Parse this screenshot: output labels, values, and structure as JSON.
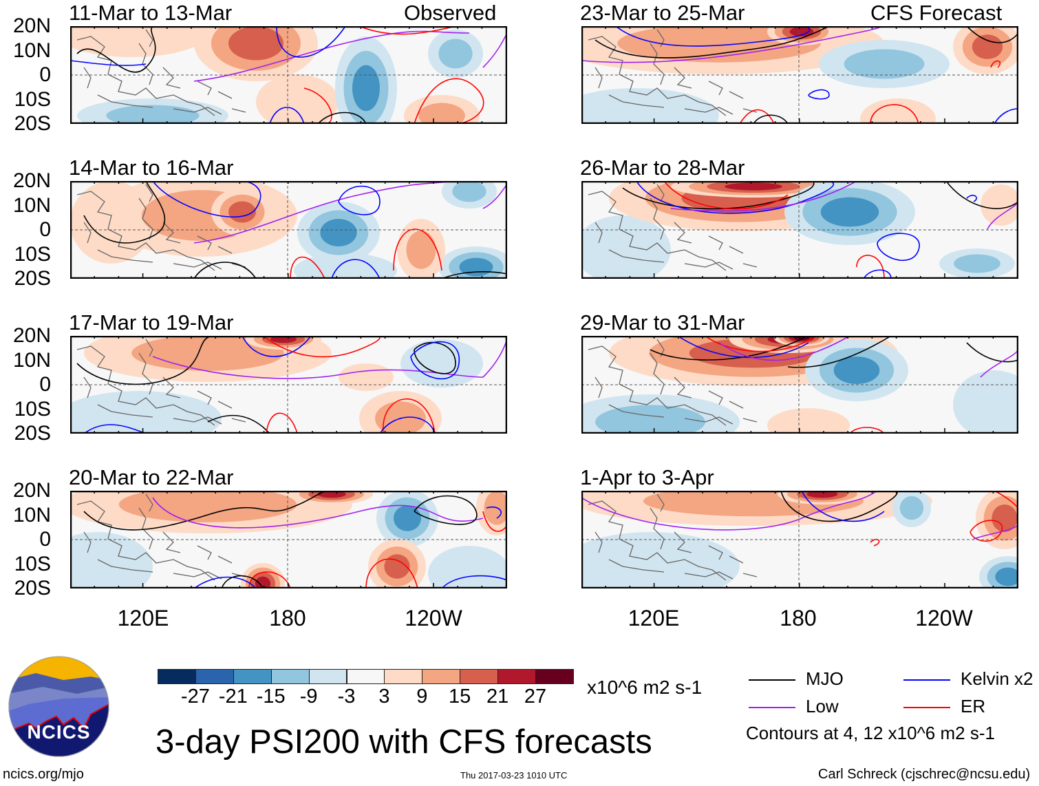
{
  "header": {
    "observed_label": "Observed",
    "forecast_label": "CFS Forecast"
  },
  "panels": [
    {
      "title": "11-Mar to 13-Mar"
    },
    {
      "title": "14-Mar to 16-Mar"
    },
    {
      "title": "17-Mar to 19-Mar"
    },
    {
      "title": "20-Mar to 22-Mar"
    },
    {
      "title": "23-Mar to 25-Mar"
    },
    {
      "title": "26-Mar to 28-Mar"
    },
    {
      "title": "29-Mar to 31-Mar"
    },
    {
      "title": "1-Apr to 3-Apr"
    }
  ],
  "axes": {
    "y_labels": [
      "20N",
      "10N",
      "0",
      "10S",
      "20S"
    ],
    "x_labels": [
      "120E",
      "180",
      "120W"
    ]
  },
  "colorbar": {
    "colors": [
      "#062c5f",
      "#2a64ad",
      "#4393c3",
      "#92c5de",
      "#d1e5f0",
      "#f7f7f7",
      "#fddbc7",
      "#f4a582",
      "#d6604d",
      "#b2182b",
      "#67001f"
    ],
    "ticks": [
      "-27",
      "-21",
      "-15",
      "-9",
      "-3",
      "3",
      "9",
      "15",
      "21",
      "27"
    ],
    "units": "x10^6 m2 s-1"
  },
  "legend": {
    "items": [
      {
        "label": "MJO",
        "color": "#000000"
      },
      {
        "label": "Kelvin x2",
        "color": "#0000ff"
      },
      {
        "label": "Low",
        "color": "#a020f0"
      },
      {
        "label": "ER",
        "color": "#ff0000"
      }
    ],
    "contours_note": "Contours at 4, 12 x10^6 m2 s-1"
  },
  "title": "3-day PSI200 with CFS forecasts",
  "logo": {
    "text": "NCICS"
  },
  "footer": {
    "url": "ncics.org/mjo",
    "timestamp": "Thu 2017-03-23 1010 UTC",
    "credit": "Carl Schreck (cjschrec@ncsu.edu)"
  }
}
